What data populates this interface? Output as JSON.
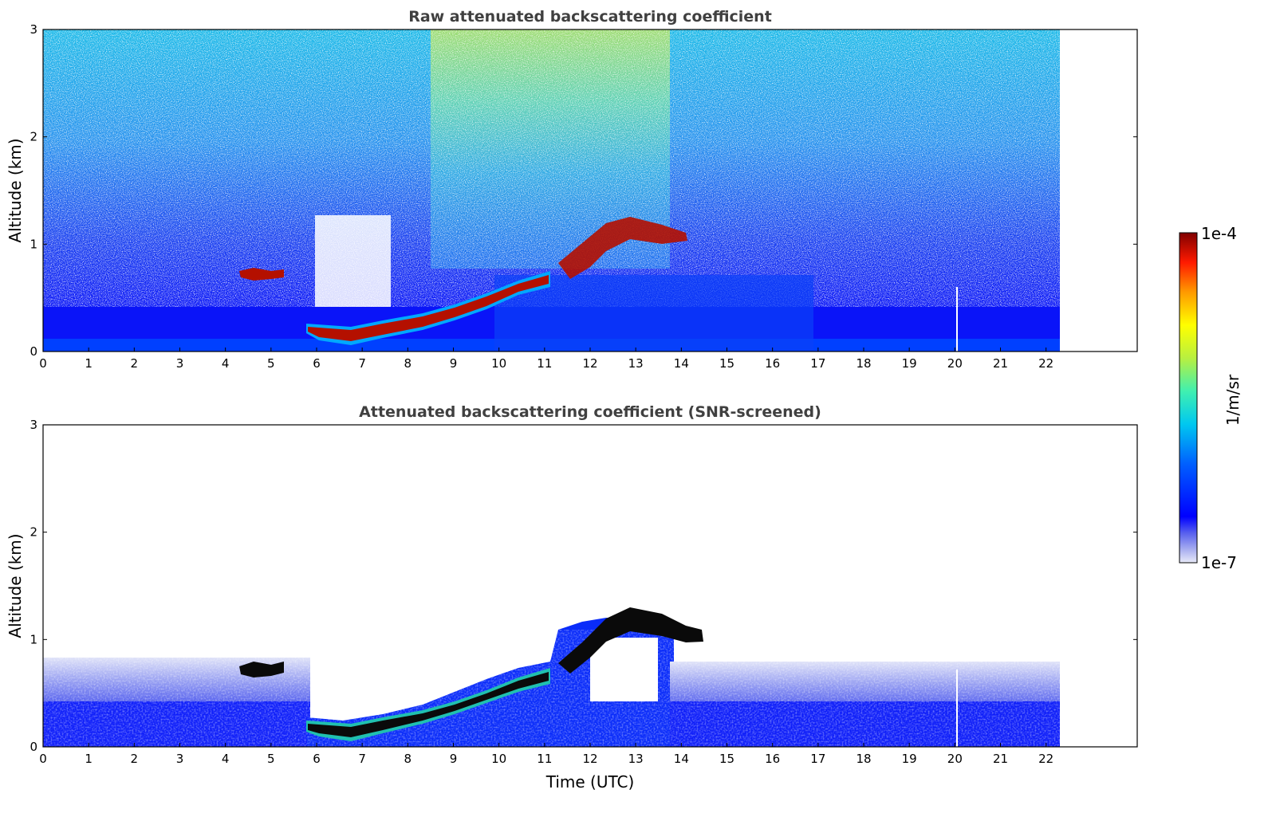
{
  "figure": {
    "colorbar": {
      "label": "1/m/sr",
      "max_label": "1e-4",
      "min_label": "1e-7"
    }
  },
  "chart_data": [
    {
      "type": "heatmap",
      "title": "Raw attenuated backscattering coefficient",
      "xlabel": "",
      "ylabel": "Altitude (km)",
      "xlim": [
        0,
        24
      ],
      "ylim": [
        0,
        3
      ],
      "xticks": [
        "0",
        "1",
        "2",
        "3",
        "4",
        "5",
        "6",
        "7",
        "8",
        "9",
        "10",
        "11",
        "12",
        "13",
        "14",
        "15",
        "16",
        "17",
        "18",
        "19",
        "20",
        "21",
        "22"
      ],
      "yticks": [
        "0",
        "1",
        "2",
        "3"
      ],
      "data_end_hour": 22.3,
      "features": [
        {
          "name": "boundary-layer",
          "from_hour": 0,
          "to_hour": 22.3,
          "top_km": 0.45,
          "level": "low"
        },
        {
          "name": "cloud-layer",
          "from_hour": 5.8,
          "to_hour": 11.0,
          "start_km": 0.17,
          "end_km": 0.6,
          "level": "high"
        },
        {
          "name": "elevated-cloud",
          "from_hour": 11.3,
          "to_hour": 14.4,
          "start_km": 0.75,
          "end_km": 1.15,
          "level": "high"
        },
        {
          "name": "small-cloud",
          "from_hour": 4.3,
          "to_hour": 5.3,
          "altitude_km": 0.72,
          "level": "high"
        }
      ]
    },
    {
      "type": "heatmap",
      "title": "Attenuated backscattering coefficient (SNR-screened)",
      "xlabel": "Time (UTC)",
      "ylabel": "Altitude (km)",
      "xlim": [
        0,
        24
      ],
      "ylim": [
        0,
        3
      ],
      "xticks": [
        "0",
        "1",
        "2",
        "3",
        "4",
        "5",
        "6",
        "7",
        "8",
        "9",
        "10",
        "11",
        "12",
        "13",
        "14",
        "15",
        "16",
        "17",
        "18",
        "19",
        "20",
        "21",
        "22"
      ],
      "yticks": [
        "0",
        "1",
        "2",
        "3"
      ],
      "data_end_hour": 22.3,
      "features": [
        {
          "name": "boundary-layer",
          "from_hour": 0,
          "to_hour": 22.3,
          "top_km": 0.8,
          "level": "low"
        },
        {
          "name": "cloud-layer",
          "from_hour": 5.8,
          "to_hour": 11.0,
          "start_km": 0.17,
          "end_km": 0.6,
          "level": "saturated"
        },
        {
          "name": "elevated-cloud",
          "from_hour": 11.3,
          "to_hour": 14.4,
          "start_km": 0.75,
          "end_km": 1.15,
          "level": "saturated"
        },
        {
          "name": "small-cloud",
          "from_hour": 4.3,
          "to_hour": 5.3,
          "altitude_km": 0.72,
          "level": "saturated"
        }
      ]
    }
  ]
}
